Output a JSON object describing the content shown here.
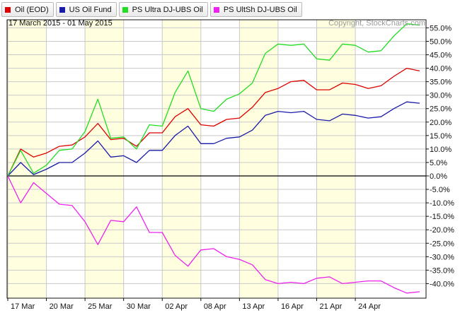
{
  "legend": [
    {
      "label": "Oil (EOD)",
      "color": "#dd0000"
    },
    {
      "label": "US Oil Fund",
      "color": "#1a1aa8"
    },
    {
      "label": "PS Ultra DJ-UBS Oil",
      "color": "#22dd22"
    },
    {
      "label": "PS UltSh DJ-UBS Oil",
      "color": "#ee22ee"
    }
  ],
  "date_range": "17 March 2015 - 01 May 2015",
  "copyright": "Copyright, StockCharts.com",
  "colors": {
    "frame": "#111111",
    "grid": "#c8c8c8",
    "zero_line": "#000000",
    "band_light": "#ffffff",
    "band_shade": "#ffffe0"
  },
  "chart_data": {
    "type": "line",
    "x": [
      "17 Mar",
      "18 Mar",
      "19 Mar",
      "20 Mar",
      "23 Mar",
      "24 Mar",
      "25 Mar",
      "26 Mar",
      "27 Mar",
      "30 Mar",
      "31 Mar",
      "01 Apr",
      "02 Apr",
      "06 Apr",
      "07 Apr",
      "08 Apr",
      "09 Apr",
      "10 Apr",
      "13 Apr",
      "14 Apr",
      "15 Apr",
      "16 Apr",
      "17 Apr",
      "20 Apr",
      "21 Apr",
      "22 Apr",
      "23 Apr",
      "24 Apr",
      "27 Apr",
      "28 Apr",
      "29 Apr",
      "30 Apr",
      "01 May"
    ],
    "x_tick_labels": [
      "17 Mar",
      "20 Mar",
      "25 Mar",
      "30 Mar",
      "02 Apr",
      "08 Apr",
      "13 Apr",
      "16 Apr",
      "21 Apr",
      "24 Apr"
    ],
    "y_tick_labels": [
      "55.0%",
      "50.0%",
      "45.0%",
      "40.0%",
      "35.0%",
      "30.0%",
      "25.0%",
      "20.0%",
      "15.0%",
      "10.0%",
      "5.0%",
      "0.0%",
      "-5.0%",
      "-10.0%",
      "-15.0%",
      "-20.0%",
      "-25.0%",
      "-30.0%",
      "-35.0%",
      "-40.0%"
    ],
    "ylim": [
      -45.4,
      58
    ],
    "ytick_min": -40,
    "ytick_max": 55,
    "ytick_step": 5,
    "series": [
      {
        "name": "Oil (EOD)",
        "color": "#dd0000",
        "values": [
          0.0,
          10.0,
          7.0,
          8.5,
          11.0,
          11.5,
          14.5,
          19.5,
          13.5,
          14.0,
          11.0,
          16.0,
          16.0,
          22.0,
          25.0,
          19.0,
          18.5,
          21.0,
          21.5,
          25.5,
          31.0,
          32.5,
          35.0,
          35.5,
          32.0,
          32.0,
          34.5,
          34.0,
          32.5,
          33.5,
          37.0,
          40.0,
          39.0
        ]
      },
      {
        "name": "US Oil Fund",
        "color": "#1a1aa8",
        "values": [
          0.0,
          5.0,
          0.5,
          2.5,
          5.0,
          5.0,
          8.5,
          13.0,
          7.0,
          7.5,
          5.0,
          9.5,
          9.5,
          15.0,
          18.5,
          12.0,
          12.0,
          14.0,
          14.5,
          17.0,
          22.5,
          24.0,
          23.5,
          24.0,
          21.0,
          20.5,
          23.0,
          22.5,
          21.5,
          22.0,
          25.0,
          27.5,
          27.0
        ]
      },
      {
        "name": "PS Ultra DJ-UBS Oil",
        "color": "#22dd22",
        "values": [
          0.0,
          9.5,
          1.0,
          4.0,
          9.5,
          10.0,
          16.5,
          28.5,
          14.0,
          14.5,
          10.0,
          19.0,
          18.5,
          31.0,
          39.0,
          25.0,
          24.0,
          28.5,
          30.5,
          34.5,
          45.5,
          49.0,
          48.5,
          49.0,
          43.5,
          43.0,
          49.0,
          48.5,
          46.0,
          46.5,
          52.0,
          56.5,
          56.0
        ]
      },
      {
        "name": "PS UltSh DJ-UBS Oil",
        "color": "#ee22ee",
        "values": [
          0.0,
          -10.0,
          -2.5,
          -6.5,
          -10.5,
          -11.0,
          -17.0,
          -25.5,
          -16.5,
          -17.0,
          -11.5,
          -21.0,
          -21.0,
          -29.5,
          -33.5,
          -27.5,
          -27.0,
          -30.0,
          -31.0,
          -33.0,
          -38.5,
          -40.0,
          -39.5,
          -40.0,
          -38.0,
          -37.5,
          -40.0,
          -39.5,
          -39.0,
          -39.0,
          -41.5,
          -43.5,
          -43.0
        ]
      }
    ]
  }
}
